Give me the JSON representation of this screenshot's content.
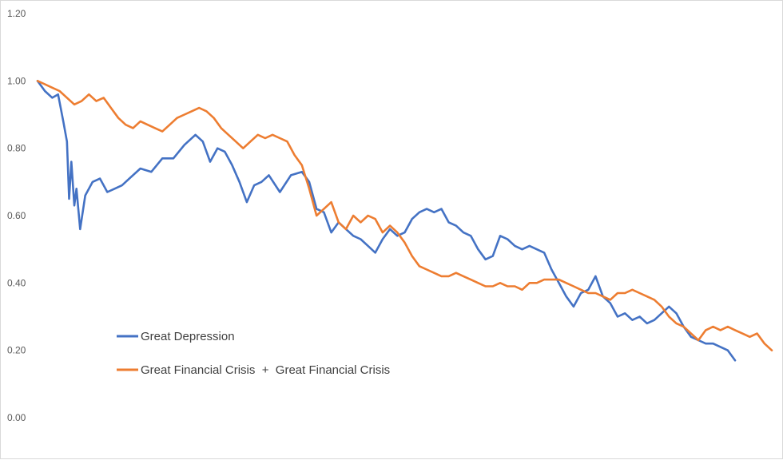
{
  "chart_data": {
    "type": "line",
    "title": "",
    "xlabel": "",
    "ylabel": "",
    "ylim": [
      0,
      1.2
    ],
    "xlim": [
      0,
      100
    ],
    "y_ticks": [
      "0.00",
      "0.20",
      "0.40",
      "0.60",
      "0.80",
      "1.00",
      "1.20"
    ],
    "grid": false,
    "legend_position": "bottom-left",
    "series": [
      {
        "name": "Great Depression",
        "color": "#4472C4",
        "x": [
          0,
          1,
          2,
          2.8,
          3.5,
          4.0,
          4.3,
          4.6,
          5.0,
          5.3,
          5.8,
          6.5,
          7.5,
          8.5,
          9.5,
          10.5,
          11.5,
          12.5,
          14,
          15.5,
          17,
          18.5,
          20,
          21.5,
          22.5,
          23.5,
          24.5,
          25.5,
          26.5,
          27.5,
          28.5,
          29.5,
          30.5,
          31.5,
          33,
          34.5,
          36,
          37,
          38,
          39,
          40,
          41,
          42,
          43,
          44,
          45,
          46,
          47,
          48,
          49,
          50,
          51,
          52,
          53,
          54,
          55,
          56,
          57,
          58,
          59,
          60,
          61,
          62,
          63,
          64,
          65,
          66,
          67,
          68,
          69,
          70,
          71,
          72,
          73,
          74,
          75,
          76,
          77,
          78,
          79,
          80,
          81,
          82,
          83,
          84,
          85,
          86,
          87,
          88,
          89,
          90,
          91,
          92,
          93,
          94,
          95
        ],
        "values": [
          1.0,
          0.97,
          0.95,
          0.96,
          0.88,
          0.82,
          0.65,
          0.76,
          0.63,
          0.68,
          0.56,
          0.66,
          0.7,
          0.71,
          0.67,
          0.68,
          0.69,
          0.71,
          0.74,
          0.73,
          0.77,
          0.77,
          0.81,
          0.84,
          0.82,
          0.76,
          0.8,
          0.79,
          0.75,
          0.7,
          0.64,
          0.69,
          0.7,
          0.72,
          0.67,
          0.72,
          0.73,
          0.7,
          0.62,
          0.61,
          0.55,
          0.58,
          0.56,
          0.54,
          0.53,
          0.51,
          0.49,
          0.53,
          0.56,
          0.54,
          0.55,
          0.59,
          0.61,
          0.62,
          0.61,
          0.62,
          0.58,
          0.57,
          0.55,
          0.54,
          0.5,
          0.47,
          0.48,
          0.54,
          0.53,
          0.51,
          0.5,
          0.51,
          0.5,
          0.49,
          0.44,
          0.4,
          0.36,
          0.33,
          0.37,
          0.38,
          0.42,
          0.36,
          0.34,
          0.3,
          0.31,
          0.29,
          0.3,
          0.28,
          0.29,
          0.31,
          0.33,
          0.31,
          0.27,
          0.24,
          0.23,
          0.22,
          0.22,
          0.21,
          0.2,
          0.17
        ]
      },
      {
        "name": "Great Financial Crisis  +  Great Financial Crisis",
        "color": "#ED7D31",
        "x": [
          0,
          1,
          2,
          3,
          4,
          5,
          6,
          7,
          8,
          9,
          10,
          11,
          12,
          13,
          14,
          15,
          16,
          17,
          18,
          19,
          20,
          21,
          22,
          23,
          24,
          25,
          26,
          27,
          28,
          29,
          30,
          31,
          32,
          33,
          34,
          35,
          36,
          37,
          38,
          39,
          40,
          41,
          42,
          43,
          44,
          45,
          46,
          47,
          48,
          49,
          50,
          51,
          52,
          53,
          54,
          55,
          56,
          57,
          58,
          59,
          60,
          61,
          62,
          63,
          64,
          65,
          66,
          67,
          68,
          69,
          70,
          71,
          72,
          73,
          74,
          75,
          76,
          77,
          78,
          79,
          80,
          81,
          82,
          83,
          84,
          85,
          86,
          87,
          88,
          89,
          90,
          91,
          92,
          93,
          94,
          95,
          96,
          97,
          98,
          99,
          100
        ],
        "values": [
          1.0,
          0.99,
          0.98,
          0.97,
          0.95,
          0.93,
          0.94,
          0.96,
          0.94,
          0.95,
          0.92,
          0.89,
          0.87,
          0.86,
          0.88,
          0.87,
          0.86,
          0.85,
          0.87,
          0.89,
          0.9,
          0.91,
          0.92,
          0.91,
          0.89,
          0.86,
          0.84,
          0.82,
          0.8,
          0.82,
          0.84,
          0.83,
          0.84,
          0.83,
          0.82,
          0.78,
          0.75,
          0.68,
          0.6,
          0.62,
          0.64,
          0.58,
          0.56,
          0.6,
          0.58,
          0.6,
          0.59,
          0.55,
          0.57,
          0.55,
          0.52,
          0.48,
          0.45,
          0.44,
          0.43,
          0.42,
          0.42,
          0.43,
          0.42,
          0.41,
          0.4,
          0.39,
          0.39,
          0.4,
          0.39,
          0.39,
          0.38,
          0.4,
          0.4,
          0.41,
          0.41,
          0.41,
          0.4,
          0.39,
          0.38,
          0.37,
          0.37,
          0.36,
          0.35,
          0.37,
          0.37,
          0.38,
          0.37,
          0.36,
          0.35,
          0.33,
          0.3,
          0.28,
          0.27,
          0.25,
          0.23,
          0.26,
          0.27,
          0.26,
          0.27,
          0.26,
          0.25,
          0.24,
          0.25,
          0.22,
          0.2
        ]
      }
    ]
  }
}
